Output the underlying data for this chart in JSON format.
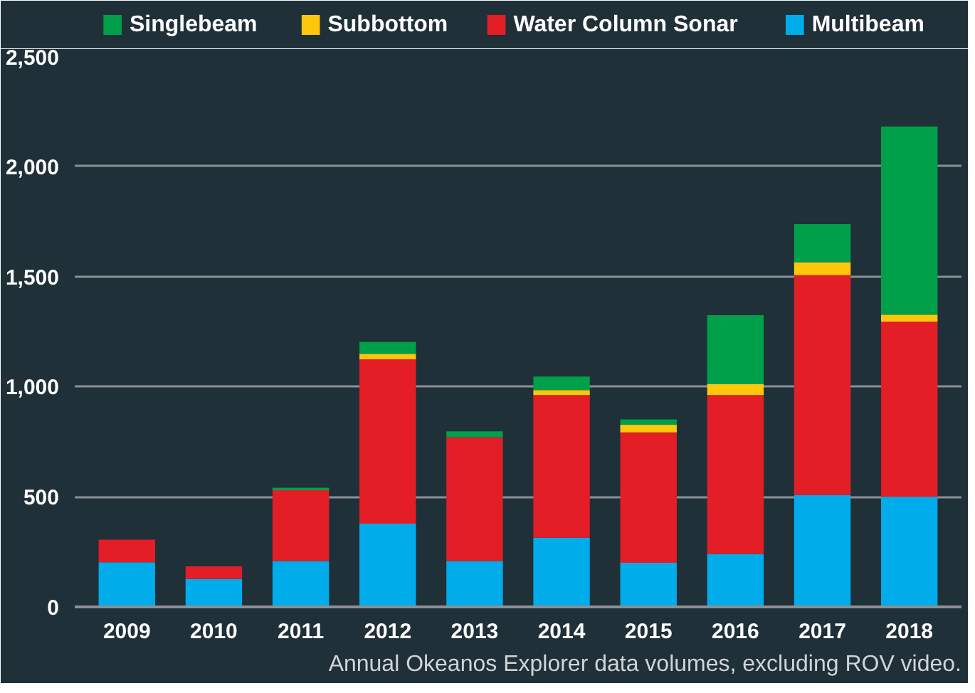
{
  "chart_data": {
    "type": "bar",
    "stacked": true,
    "categories": [
      "2009",
      "2010",
      "2011",
      "2012",
      "2013",
      "2014",
      "2015",
      "2016",
      "2017",
      "2018"
    ],
    "series": [
      {
        "name": "Multibeam",
        "color": "#00ace9",
        "values": [
          203,
          127,
          208,
          378,
          208,
          314,
          200,
          241,
          508,
          500
        ]
      },
      {
        "name": "Water Column Sonar",
        "color": "#e41e26",
        "values": [
          102,
          57,
          322,
          746,
          562,
          648,
          592,
          721,
          998,
          795
        ]
      },
      {
        "name": "Subbottom",
        "color": "#fdc70c",
        "values": [
          0,
          0,
          0,
          25,
          0,
          22,
          35,
          49,
          59,
          32
        ]
      },
      {
        "name": "Singlebeam",
        "color": "#00a04a",
        "values": [
          0,
          0,
          11,
          54,
          27,
          62,
          24,
          313,
          173,
          854
        ]
      }
    ],
    "ylim": [
      0,
      2500
    ],
    "yticks": [
      0,
      500,
      {
        "value": 1000,
        "label": "1,000"
      },
      {
        "value": 1500,
        "label": "1,500"
      },
      {
        "value": 2000,
        "label": "2,000"
      },
      {
        "value": 2500,
        "label": "2,500"
      }
    ],
    "grid": "y",
    "legend": "top",
    "annotations": [
      "Annual Okeanos Explorer data volumes, excluding ROV video."
    ]
  }
}
